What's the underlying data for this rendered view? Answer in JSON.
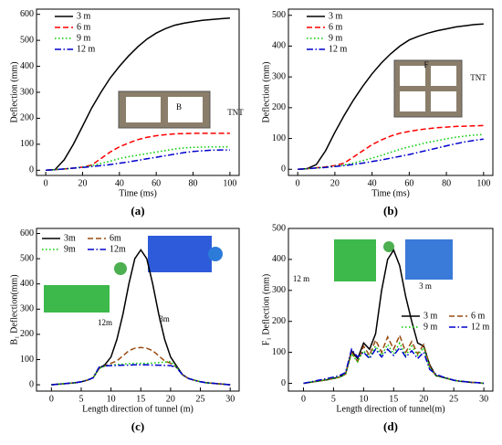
{
  "chart_data": [
    {
      "type": "line",
      "title": "(a)",
      "xlabel": "Time (ms)",
      "ylabel": "Deflection (mm)",
      "x": [
        0,
        5,
        10,
        15,
        20,
        25,
        30,
        35,
        40,
        45,
        50,
        55,
        60,
        65,
        70,
        75,
        80,
        85,
        90,
        95,
        100
      ],
      "series": [
        {
          "name": "3 m",
          "color": "#000000",
          "style": "solid",
          "values": [
            0,
            2,
            40,
            100,
            170,
            240,
            300,
            355,
            400,
            440,
            475,
            505,
            528,
            545,
            558,
            566,
            572,
            577,
            580,
            583,
            586
          ]
        },
        {
          "name": "6 m",
          "color": "#ff0000",
          "style": "dashed",
          "values": [
            0,
            2,
            5,
            8,
            12,
            20,
            45,
            70,
            90,
            105,
            118,
            127,
            133,
            137,
            140,
            141,
            142,
            142,
            142,
            142,
            142
          ]
        },
        {
          "name": "9 m",
          "color": "#00cc00",
          "style": "dotted",
          "values": [
            0,
            2,
            5,
            8,
            12,
            18,
            26,
            35,
            45,
            52,
            58,
            64,
            70,
            76,
            82,
            86,
            88,
            89,
            90,
            90,
            90
          ]
        },
        {
          "name": "12 m",
          "color": "#0000cc",
          "style": "dashdot",
          "values": [
            0,
            2,
            5,
            8,
            11,
            14,
            18,
            22,
            27,
            32,
            38,
            44,
            50,
            56,
            62,
            68,
            72,
            75,
            77,
            78,
            78
          ]
        }
      ],
      "xlim": [
        -5,
        105
      ],
      "ylim": [
        -20,
        620
      ],
      "xticks": [
        0,
        20,
        40,
        60,
        80,
        100
      ],
      "yticks": [
        0,
        100,
        200,
        300,
        400,
        500,
        600
      ],
      "annotations": [
        "B",
        "TNT"
      ]
    },
    {
      "type": "line",
      "title": "(b)",
      "xlabel": "Time (ms)",
      "ylabel": "Deflection (mm)",
      "x": [
        0,
        5,
        10,
        15,
        20,
        25,
        30,
        35,
        40,
        45,
        50,
        55,
        60,
        65,
        70,
        75,
        80,
        85,
        90,
        95,
        100
      ],
      "series": [
        {
          "name": "3 m",
          "color": "#000000",
          "style": "solid",
          "values": [
            0,
            2,
            15,
            60,
            120,
            175,
            225,
            270,
            310,
            345,
            375,
            400,
            420,
            432,
            442,
            450,
            456,
            462,
            466,
            470,
            472
          ]
        },
        {
          "name": "6 m",
          "color": "#ff0000",
          "style": "dashed",
          "values": [
            0,
            2,
            5,
            8,
            12,
            20,
            40,
            60,
            80,
            95,
            108,
            117,
            123,
            128,
            132,
            135,
            137,
            139,
            140,
            141,
            142
          ]
        },
        {
          "name": "9 m",
          "color": "#00cc00",
          "style": "dotted",
          "values": [
            0,
            2,
            4,
            7,
            10,
            14,
            20,
            28,
            36,
            45,
            55,
            65,
            73,
            80,
            87,
            93,
            99,
            104,
            108,
            111,
            113
          ]
        },
        {
          "name": "12 m",
          "color": "#0000cc",
          "style": "dashdot",
          "values": [
            0,
            2,
            4,
            6,
            9,
            12,
            16,
            20,
            25,
            30,
            36,
            42,
            48,
            55,
            62,
            69,
            76,
            83,
            89,
            94,
            98
          ]
        }
      ],
      "xlim": [
        -5,
        105
      ],
      "ylim": [
        -20,
        520
      ],
      "xticks": [
        0,
        20,
        40,
        60,
        80,
        100
      ],
      "yticks": [
        0,
        100,
        200,
        300,
        400,
        500
      ],
      "annotations": [
        "F",
        "TNT"
      ]
    },
    {
      "type": "line",
      "title": "(c)",
      "xlabel": "Length direction of tunnel (m)",
      "ylabel": "B₁ Deflection(mm)",
      "x": [
        0,
        1,
        2,
        3,
        4,
        5,
        6,
        7,
        8,
        9,
        10,
        11,
        12,
        13,
        14,
        15,
        16,
        17,
        18,
        19,
        20,
        21,
        22,
        23,
        24,
        25,
        26,
        27,
        28,
        29,
        30
      ],
      "series": [
        {
          "name": "3m",
          "color": "#000000",
          "style": "solid",
          "values": [
            0,
            2,
            4,
            6,
            8,
            12,
            18,
            28,
            65,
            80,
            110,
            180,
            280,
            400,
            500,
            535,
            500,
            400,
            280,
            180,
            110,
            75,
            40,
            25,
            18,
            12,
            8,
            6,
            4,
            2,
            0
          ]
        },
        {
          "name": "6m",
          "color": "#9a4a10",
          "style": "dashed",
          "values": [
            0,
            2,
            4,
            6,
            8,
            12,
            18,
            28,
            65,
            75,
            85,
            95,
            115,
            135,
            145,
            148,
            145,
            135,
            115,
            95,
            85,
            70,
            40,
            25,
            18,
            12,
            8,
            6,
            4,
            2,
            0
          ]
        },
        {
          "name": "9m",
          "color": "#00cc00",
          "style": "dotted",
          "values": [
            0,
            2,
            4,
            6,
            8,
            12,
            18,
            28,
            65,
            75,
            78,
            80,
            82,
            84,
            85,
            85,
            85,
            86,
            88,
            90,
            92,
            70,
            40,
            25,
            18,
            12,
            8,
            6,
            4,
            2,
            0
          ]
        },
        {
          "name": "12m",
          "color": "#0000cc",
          "style": "dashdot",
          "values": [
            0,
            2,
            4,
            6,
            8,
            12,
            18,
            28,
            70,
            75,
            76,
            77,
            78,
            78,
            79,
            79,
            79,
            78,
            78,
            77,
            76,
            68,
            40,
            25,
            18,
            12,
            8,
            6,
            4,
            2,
            0
          ]
        }
      ],
      "xlim": [
        -2.5,
        31.5
      ],
      "ylim": [
        -25,
        620
      ],
      "xticks": [
        0,
        5,
        10,
        15,
        20,
        25,
        30
      ],
      "yticks": [
        0,
        100,
        200,
        300,
        400,
        500,
        600
      ],
      "annotations": [
        "12m",
        "3m"
      ]
    },
    {
      "type": "line",
      "title": "(d)",
      "xlabel": "Length direction of tunnel(m)",
      "ylabel": "F₁ Deflection (mm)",
      "x": [
        0,
        1,
        2,
        3,
        4,
        5,
        6,
        7,
        8,
        9,
        10,
        11,
        12,
        13,
        14,
        15,
        16,
        17,
        18,
        19,
        20,
        21,
        22,
        23,
        24,
        25,
        26,
        27,
        28,
        29,
        30
      ],
      "series": [
        {
          "name": "3 m",
          "color": "#000000",
          "style": "solid",
          "values": [
            0,
            3,
            6,
            9,
            12,
            16,
            20,
            30,
            105,
            80,
            130,
            110,
            160,
            300,
            400,
            430,
            380,
            280,
            200,
            130,
            120,
            60,
            25,
            20,
            15,
            10,
            7,
            5,
            3,
            2,
            0
          ]
        },
        {
          "name": "6 m",
          "color": "#9a4a10",
          "style": "dashed",
          "values": [
            0,
            3,
            6,
            9,
            12,
            16,
            20,
            30,
            100,
            70,
            120,
            90,
            140,
            100,
            150,
            110,
            155,
            100,
            135,
            95,
            125,
            55,
            25,
            20,
            15,
            10,
            7,
            5,
            3,
            2,
            0
          ]
        },
        {
          "name": "9 m",
          "color": "#00cc00",
          "style": "dotted",
          "values": [
            0,
            3,
            6,
            9,
            12,
            16,
            20,
            30,
            95,
            70,
            105,
            85,
            120,
            90,
            125,
            95,
            130,
            90,
            120,
            90,
            115,
            50,
            25,
            20,
            15,
            10,
            7,
            5,
            3,
            2,
            0
          ]
        },
        {
          "name": "12 m",
          "color": "#0000cc",
          "style": "dashdot",
          "values": [
            0,
            4,
            8,
            12,
            16,
            20,
            25,
            35,
            110,
            85,
            100,
            80,
            110,
            85,
            110,
            90,
            115,
            85,
            105,
            80,
            100,
            45,
            30,
            22,
            16,
            10,
            7,
            5,
            3,
            2,
            0
          ]
        }
      ],
      "xlim": [
        -2.5,
        31.5
      ],
      "ylim": [
        -25,
        500
      ],
      "xticks": [
        0,
        5,
        10,
        15,
        20,
        25,
        30
      ],
      "yticks": [
        0,
        100,
        200,
        300,
        400,
        500
      ],
      "annotations": [
        "12 m",
        "3 m"
      ]
    }
  ]
}
